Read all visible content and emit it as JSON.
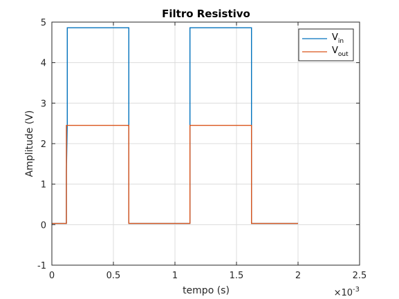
{
  "chart_data": {
    "type": "line",
    "title": "Filtro Resistivo",
    "xlabel": "tempo (s)",
    "ylabel": "Amplitude (V)",
    "x_exponent_base": "×10",
    "x_exponent_power": "-3",
    "xlim": [
      0,
      0.0025
    ],
    "ylim": [
      -1,
      5
    ],
    "xticks": [
      0,
      0.0005,
      0.001,
      0.0015,
      0.002,
      0.0025
    ],
    "xtick_labels": [
      "0",
      "0.5",
      "1",
      "1.5",
      "2",
      "2.5"
    ],
    "yticks": [
      -1,
      0,
      1,
      2,
      3,
      4,
      5
    ],
    "ytick_labels": [
      "-1",
      "0",
      "1",
      "2",
      "3",
      "4",
      "5"
    ],
    "grid": true,
    "legend_position": "top-right",
    "series": [
      {
        "name_base": "V",
        "name_sub": "in",
        "color": "#0072BD",
        "x": [
          0,
          0.000118,
          0.000118,
          0.000125,
          0.000125,
          0.000625,
          0.000625,
          0.001122,
          0.001122,
          0.001622,
          0.001622,
          0.002
        ],
        "y": [
          0.03,
          0.03,
          1.3,
          2.5,
          4.86,
          4.86,
          0.03,
          0.03,
          4.86,
          4.86,
          0.03,
          0.03
        ]
      },
      {
        "name_base": "V",
        "name_sub": "out",
        "color": "#D95319",
        "x": [
          0,
          0.000118,
          0.000118,
          0.000625,
          0.000625,
          0.001122,
          0.001122,
          0.001622,
          0.001622,
          0.002
        ],
        "y": [
          0.03,
          0.03,
          2.45,
          2.45,
          0.03,
          0.03,
          2.45,
          2.45,
          0.03,
          0.03
        ]
      }
    ]
  }
}
